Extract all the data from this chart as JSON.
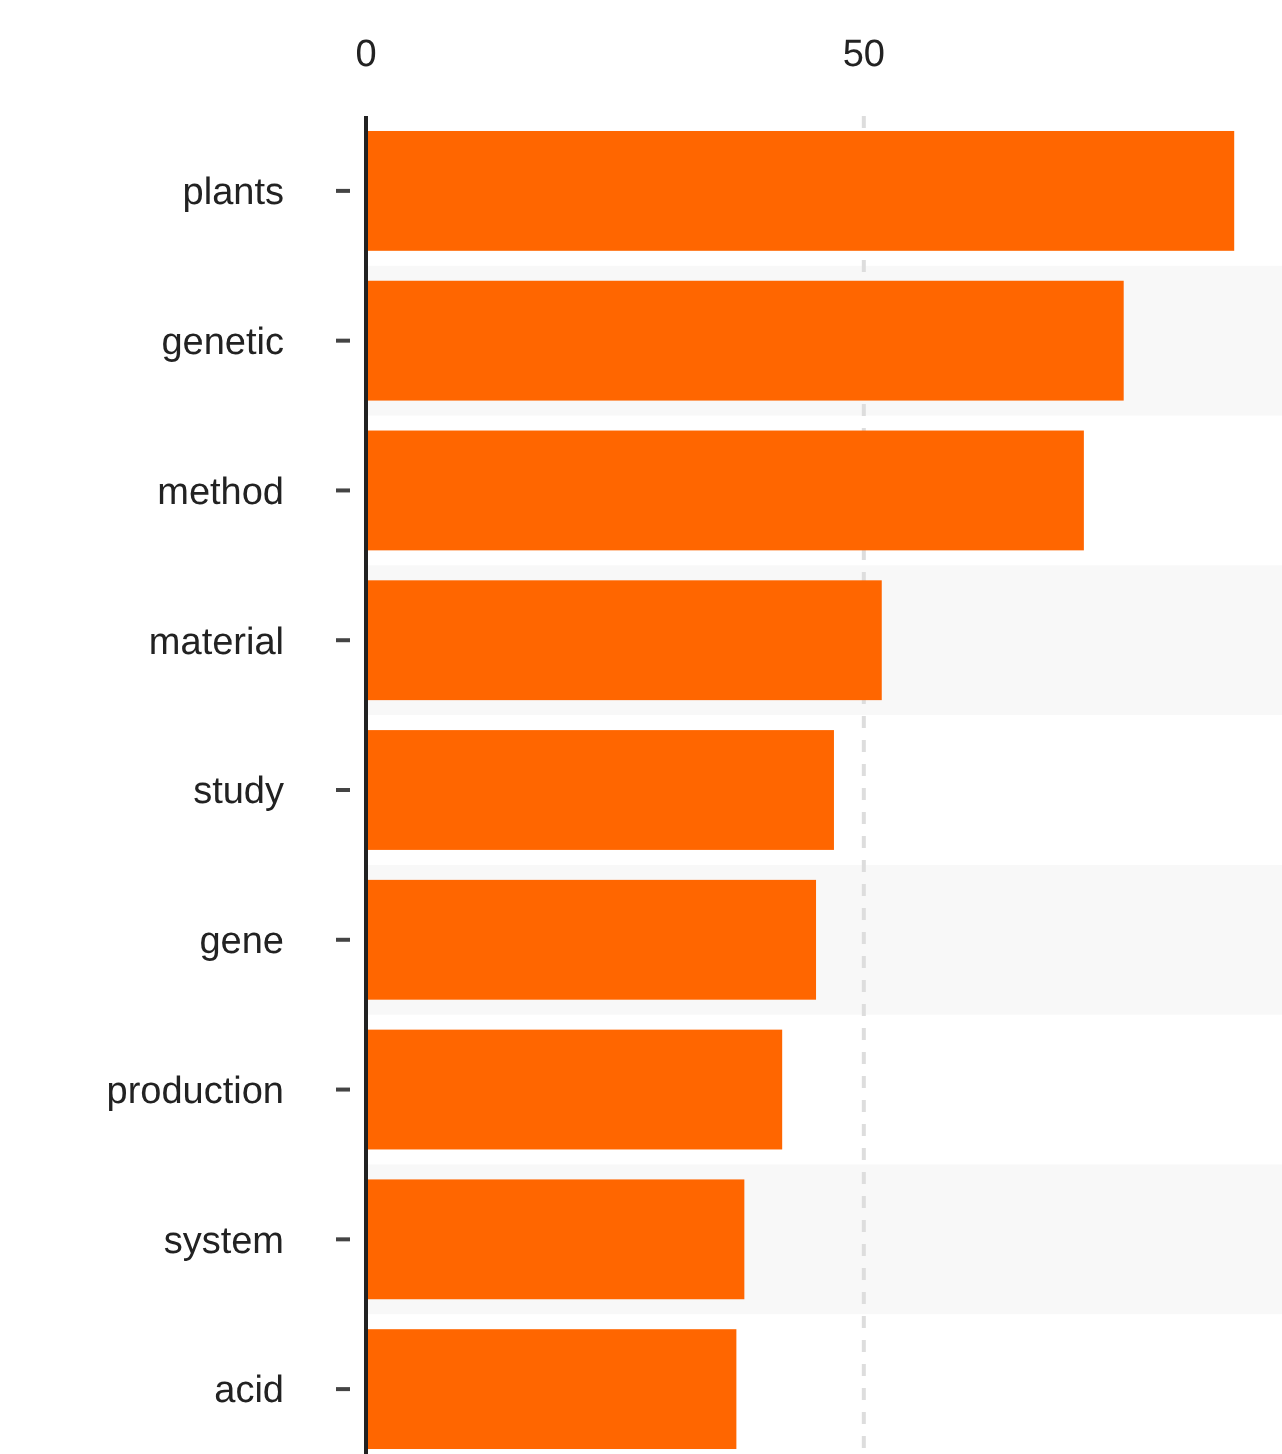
{
  "chart_data": {
    "type": "bar",
    "orientation": "horizontal",
    "categories": [
      "plants",
      "genetic",
      "method",
      "material",
      "study",
      "gene",
      "production",
      "system",
      "acid"
    ],
    "values": [
      87.2,
      76.1,
      72.1,
      51.8,
      47,
      45.2,
      41.8,
      38,
      37.2
    ],
    "color": "#ff6600",
    "xlim": [
      0,
      92
    ],
    "xticks": [
      0,
      50
    ],
    "grid": "x"
  }
}
